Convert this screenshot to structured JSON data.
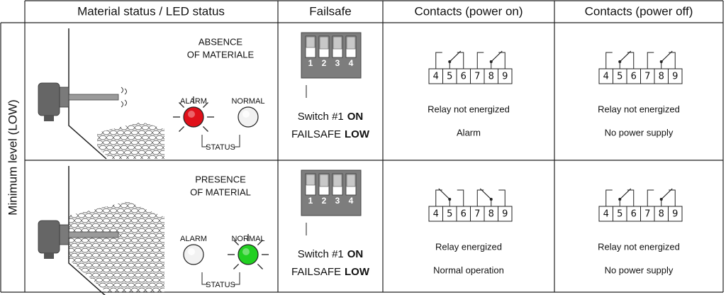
{
  "header": {
    "columns": [
      "Material status / LED status",
      "Failsafe",
      "Contacts (power on)",
      "Contacts (power off)"
    ]
  },
  "row_label": "Minimum level (LOW)",
  "rows": [
    {
      "material": [
        "ABSENCE",
        "OF MATERIALE"
      ],
      "led": {
        "alarm": "ALARM",
        "normal": "NORMAL",
        "status": "STATUS"
      },
      "dip_numbers": [
        "1",
        "2",
        "3",
        "4"
      ],
      "switch": {
        "line1": "Switch #1",
        "line1_bold": "ON",
        "line2": "FAILSAFE",
        "line2_bold": "LOW"
      },
      "power_on": {
        "terminals": [
          "4",
          "5",
          "6",
          "7",
          "8",
          "9"
        ],
        "state": "Relay not energized",
        "note": "Alarm"
      },
      "power_off": {
        "terminals": [
          "4",
          "5",
          "6",
          "7",
          "8",
          "9"
        ],
        "state": "Relay not energized",
        "note": "No power supply"
      }
    },
    {
      "material": [
        "PRESENCE",
        "OF MATERIAL"
      ],
      "led": {
        "alarm": "ALARM",
        "normal": "NORMAL",
        "status": "STATUS"
      },
      "dip_numbers": [
        "1",
        "2",
        "3",
        "4"
      ],
      "switch": {
        "line1": "Switch #1",
        "line1_bold": "ON",
        "line2": "FAILSAFE",
        "line2_bold": "LOW"
      },
      "power_on": {
        "terminals": [
          "4",
          "5",
          "6",
          "7",
          "8",
          "9"
        ],
        "state": "Relay energized",
        "note": "Normal operation"
      },
      "power_off": {
        "terminals": [
          "4",
          "5",
          "6",
          "7",
          "8",
          "9"
        ],
        "state": "Relay not energized",
        "note": "No power supply"
      }
    }
  ]
}
